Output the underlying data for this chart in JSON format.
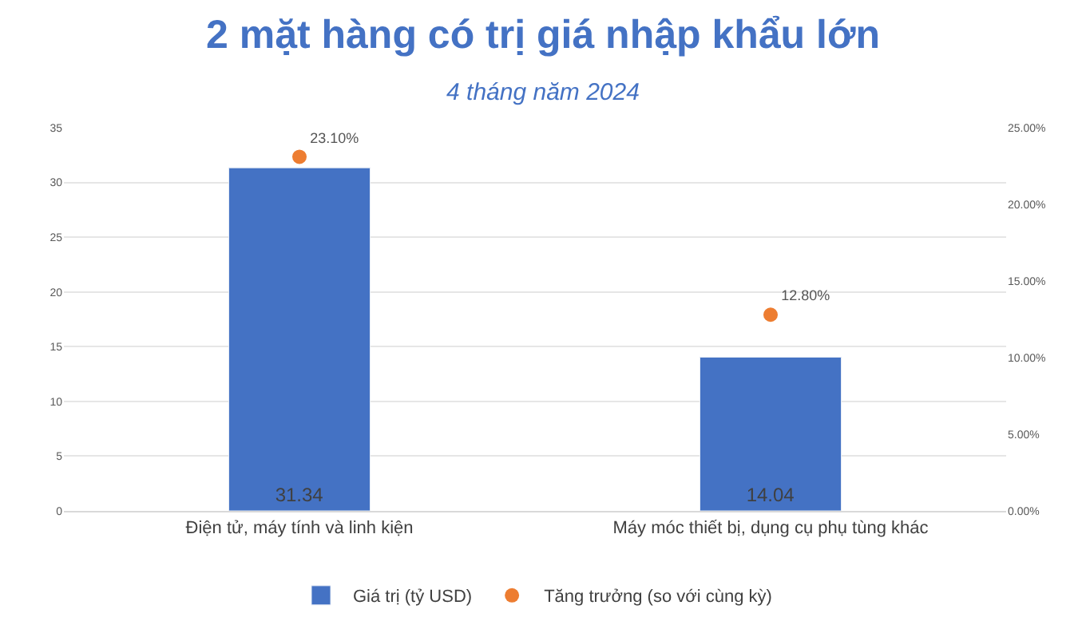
{
  "chart_data": {
    "type": "bar",
    "title": "2 mặt hàng có trị giá nhập khẩu lớn",
    "subtitle": "4 tháng năm 2024",
    "categories": [
      "Điện tử, máy tính và linh kiện",
      "Máy móc thiết bị, dụng cụ phụ tùng khác"
    ],
    "series": [
      {
        "name": "Giá trị (tỷ USD)",
        "color": "#4472c4",
        "values": [
          31.34,
          14.04
        ],
        "value_labels": [
          "31.34",
          "14.04"
        ]
      },
      {
        "name": "Tăng trưởng (so với cùng kỳ)",
        "type": "scatter",
        "axis": "y2",
        "color": "#ed7d31",
        "marker": "circle",
        "values": [
          23.1,
          12.8
        ],
        "value_labels": [
          "23.10%",
          "12.80%"
        ]
      }
    ],
    "ylim": [
      0,
      35
    ],
    "yticks": [
      0,
      5,
      10,
      15,
      20,
      25,
      30,
      35
    ],
    "y2lim": [
      0,
      25
    ],
    "y2ticks": [
      {
        "value": 0,
        "label": "0.00%"
      },
      {
        "value": 5,
        "label": "5.00%"
      },
      {
        "value": 10,
        "label": "10.00%"
      },
      {
        "value": 15,
        "label": "15.00%"
      },
      {
        "value": 20,
        "label": "20.00%"
      },
      {
        "value": 25,
        "label": "25.00%"
      }
    ],
    "grid": "y",
    "legend": "bottom"
  }
}
